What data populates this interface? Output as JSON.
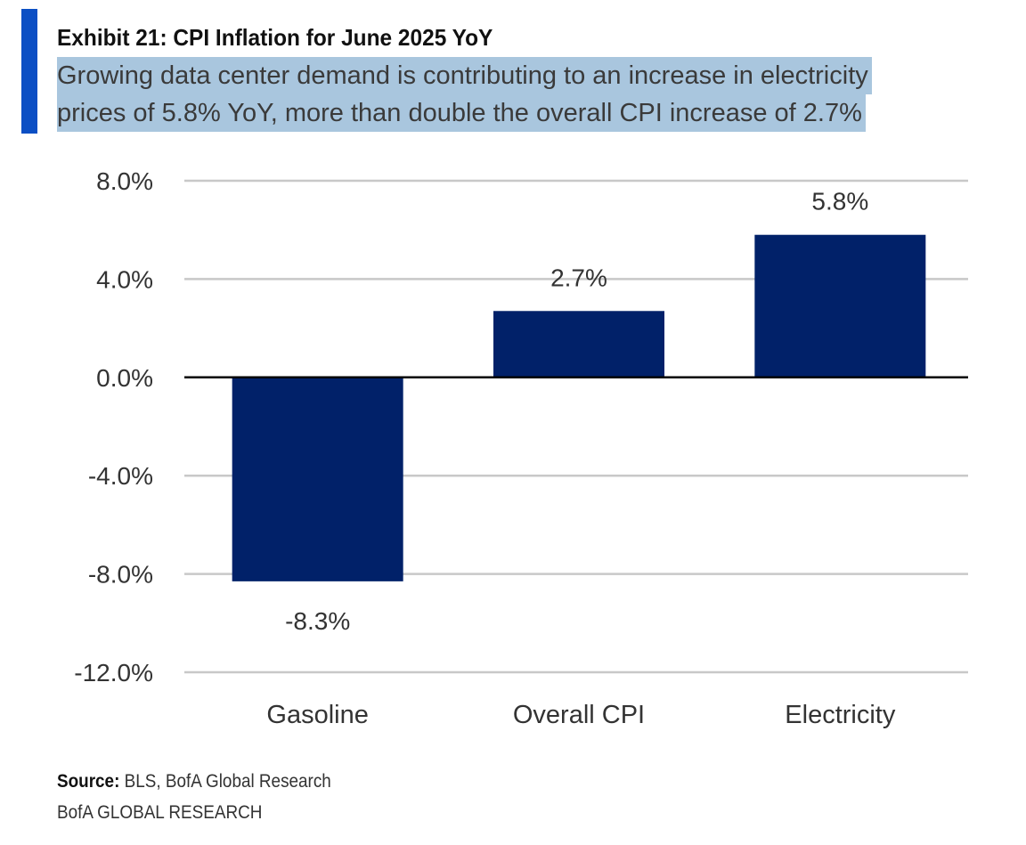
{
  "header": {
    "title": "Exhibit 21: CPI Inflation for June 2025 YoY",
    "subtitle_line1": "Growing data center demand is contributing to an increase in electricity",
    "subtitle_line2": "prices of 5.8% YoY, more than double the overall CPI increase of 2.7%"
  },
  "chart_data": {
    "type": "bar",
    "categories": [
      "Gasoline",
      "Overall CPI",
      "Electricity"
    ],
    "values": [
      -8.3,
      2.7,
      5.8
    ],
    "data_labels": [
      "-8.3%",
      "2.7%",
      "5.8%"
    ],
    "ylim": [
      -12,
      8
    ],
    "yticks": [
      8,
      4,
      0,
      -4,
      -8,
      -12
    ],
    "ytick_labels": [
      "8.0%",
      "4.0%",
      "0.0%",
      "-4.0%",
      "-8.0%",
      "-12.0%"
    ],
    "grid": true,
    "bar_color": "#012169",
    "title": "",
    "xlabel": "",
    "ylabel": ""
  },
  "footer": {
    "source_label": "Source:",
    "source_text": " BLS, BofA Global Research",
    "brand": "BofA GLOBAL RESEARCH"
  },
  "colors": {
    "accent": "#0b4fc4",
    "highlight": "#a9c6de"
  }
}
